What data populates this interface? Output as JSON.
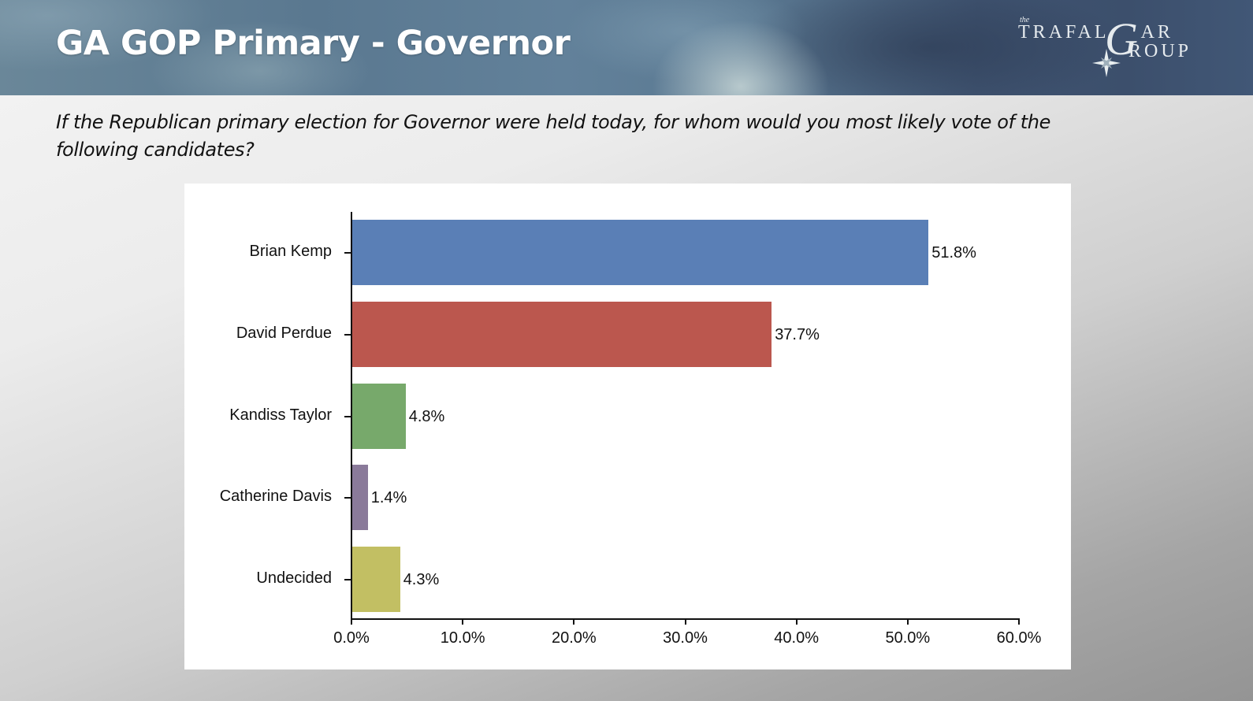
{
  "header": {
    "title": "GA GOP Primary - Governor",
    "logo": {
      "the": "the",
      "line1": "TRAFAL",
      "g": "G",
      "line1_end": "AR",
      "line2": "ROUP"
    }
  },
  "question": "If the Republican primary election for Governor were held today, for whom would you most likely vote of the following candidates?",
  "chart_data": {
    "type": "bar",
    "orientation": "horizontal",
    "title": "GA GOP Primary - Governor",
    "subtitle": "If the Republican primary election for Governor were held today, for whom would you most likely vote of the following candidates?",
    "categories": [
      "Brian Kemp",
      "David Perdue",
      "Kandiss Taylor",
      "Catherine Davis",
      "Undecided"
    ],
    "values": [
      51.8,
      37.7,
      4.8,
      1.4,
      4.3
    ],
    "value_labels": [
      "51.8%",
      "37.7%",
      "4.8%",
      "1.4%",
      "4.3%"
    ],
    "colors": [
      "#5a7fb6",
      "#bb574e",
      "#77a96b",
      "#8a7a9a",
      "#c2bf63"
    ],
    "xlabel": "",
    "ylabel": "",
    "xlim": [
      0,
      60
    ],
    "x_ticks": [
      "0.0%",
      "10.0%",
      "20.0%",
      "30.0%",
      "40.0%",
      "50.0%",
      "60.0%"
    ],
    "grid": false,
    "legend": "none"
  }
}
